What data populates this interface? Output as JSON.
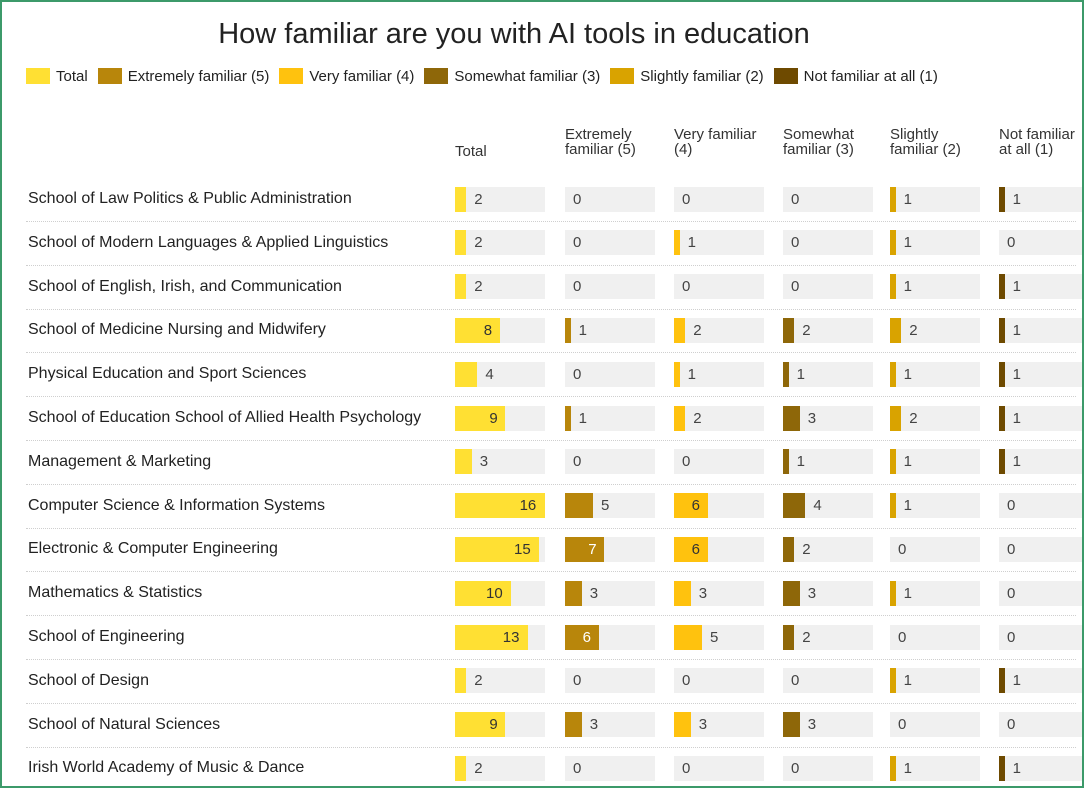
{
  "title": "How familiar are you with AI tools in education",
  "columns": [
    {
      "name": "Total",
      "color": "#ffe033"
    },
    {
      "name": "Extremely familiar (5)",
      "color": "#b8860b"
    },
    {
      "name": "Very familiar (4)",
      "color": "#ffc20e"
    },
    {
      "name": "Somewhat familiar (3)",
      "color": "#8e6709"
    },
    {
      "name": "Slightly familiar (2)",
      "color": "#d9a300"
    },
    {
      "name": "Not familiar at all (1)",
      "color": "#6e4a00"
    }
  ],
  "rows": [
    {
      "label": "School of Law Politics & Public Administration",
      "values": [
        2,
        0,
        0,
        0,
        1,
        1
      ]
    },
    {
      "label": "School of Modern Languages & Applied Linguistics",
      "values": [
        2,
        0,
        1,
        0,
        1,
        0
      ]
    },
    {
      "label": "School of English, Irish, and Communication",
      "values": [
        2,
        0,
        0,
        0,
        1,
        1
      ]
    },
    {
      "label": "School of Medicine Nursing and Midwifery",
      "values": [
        8,
        1,
        2,
        2,
        2,
        1
      ]
    },
    {
      "label": "Physical Education and Sport Sciences",
      "values": [
        4,
        0,
        1,
        1,
        1,
        1
      ]
    },
    {
      "label": "School of Education School of Allied Health Psychology",
      "values": [
        9,
        1,
        2,
        3,
        2,
        1
      ]
    },
    {
      "label": "Management & Marketing",
      "values": [
        3,
        0,
        0,
        1,
        1,
        1
      ]
    },
    {
      "label": "Computer Science & Information Systems",
      "values": [
        16,
        5,
        6,
        4,
        1,
        0
      ]
    },
    {
      "label": "Electronic & Computer Engineering",
      "values": [
        15,
        7,
        6,
        2,
        0,
        0
      ]
    },
    {
      "label": "Mathematics & Statistics",
      "values": [
        10,
        3,
        3,
        3,
        1,
        0
      ]
    },
    {
      "label": "School of Engineering",
      "values": [
        13,
        6,
        5,
        2,
        0,
        0
      ]
    },
    {
      "label": "School of Design",
      "values": [
        2,
        0,
        0,
        0,
        1,
        1
      ]
    },
    {
      "label": "School of Natural Sciences",
      "values": [
        9,
        3,
        3,
        3,
        0,
        0
      ]
    },
    {
      "label": "Irish World Academy of Music & Dance",
      "values": [
        2,
        0,
        0,
        0,
        1,
        1
      ]
    }
  ]
}
